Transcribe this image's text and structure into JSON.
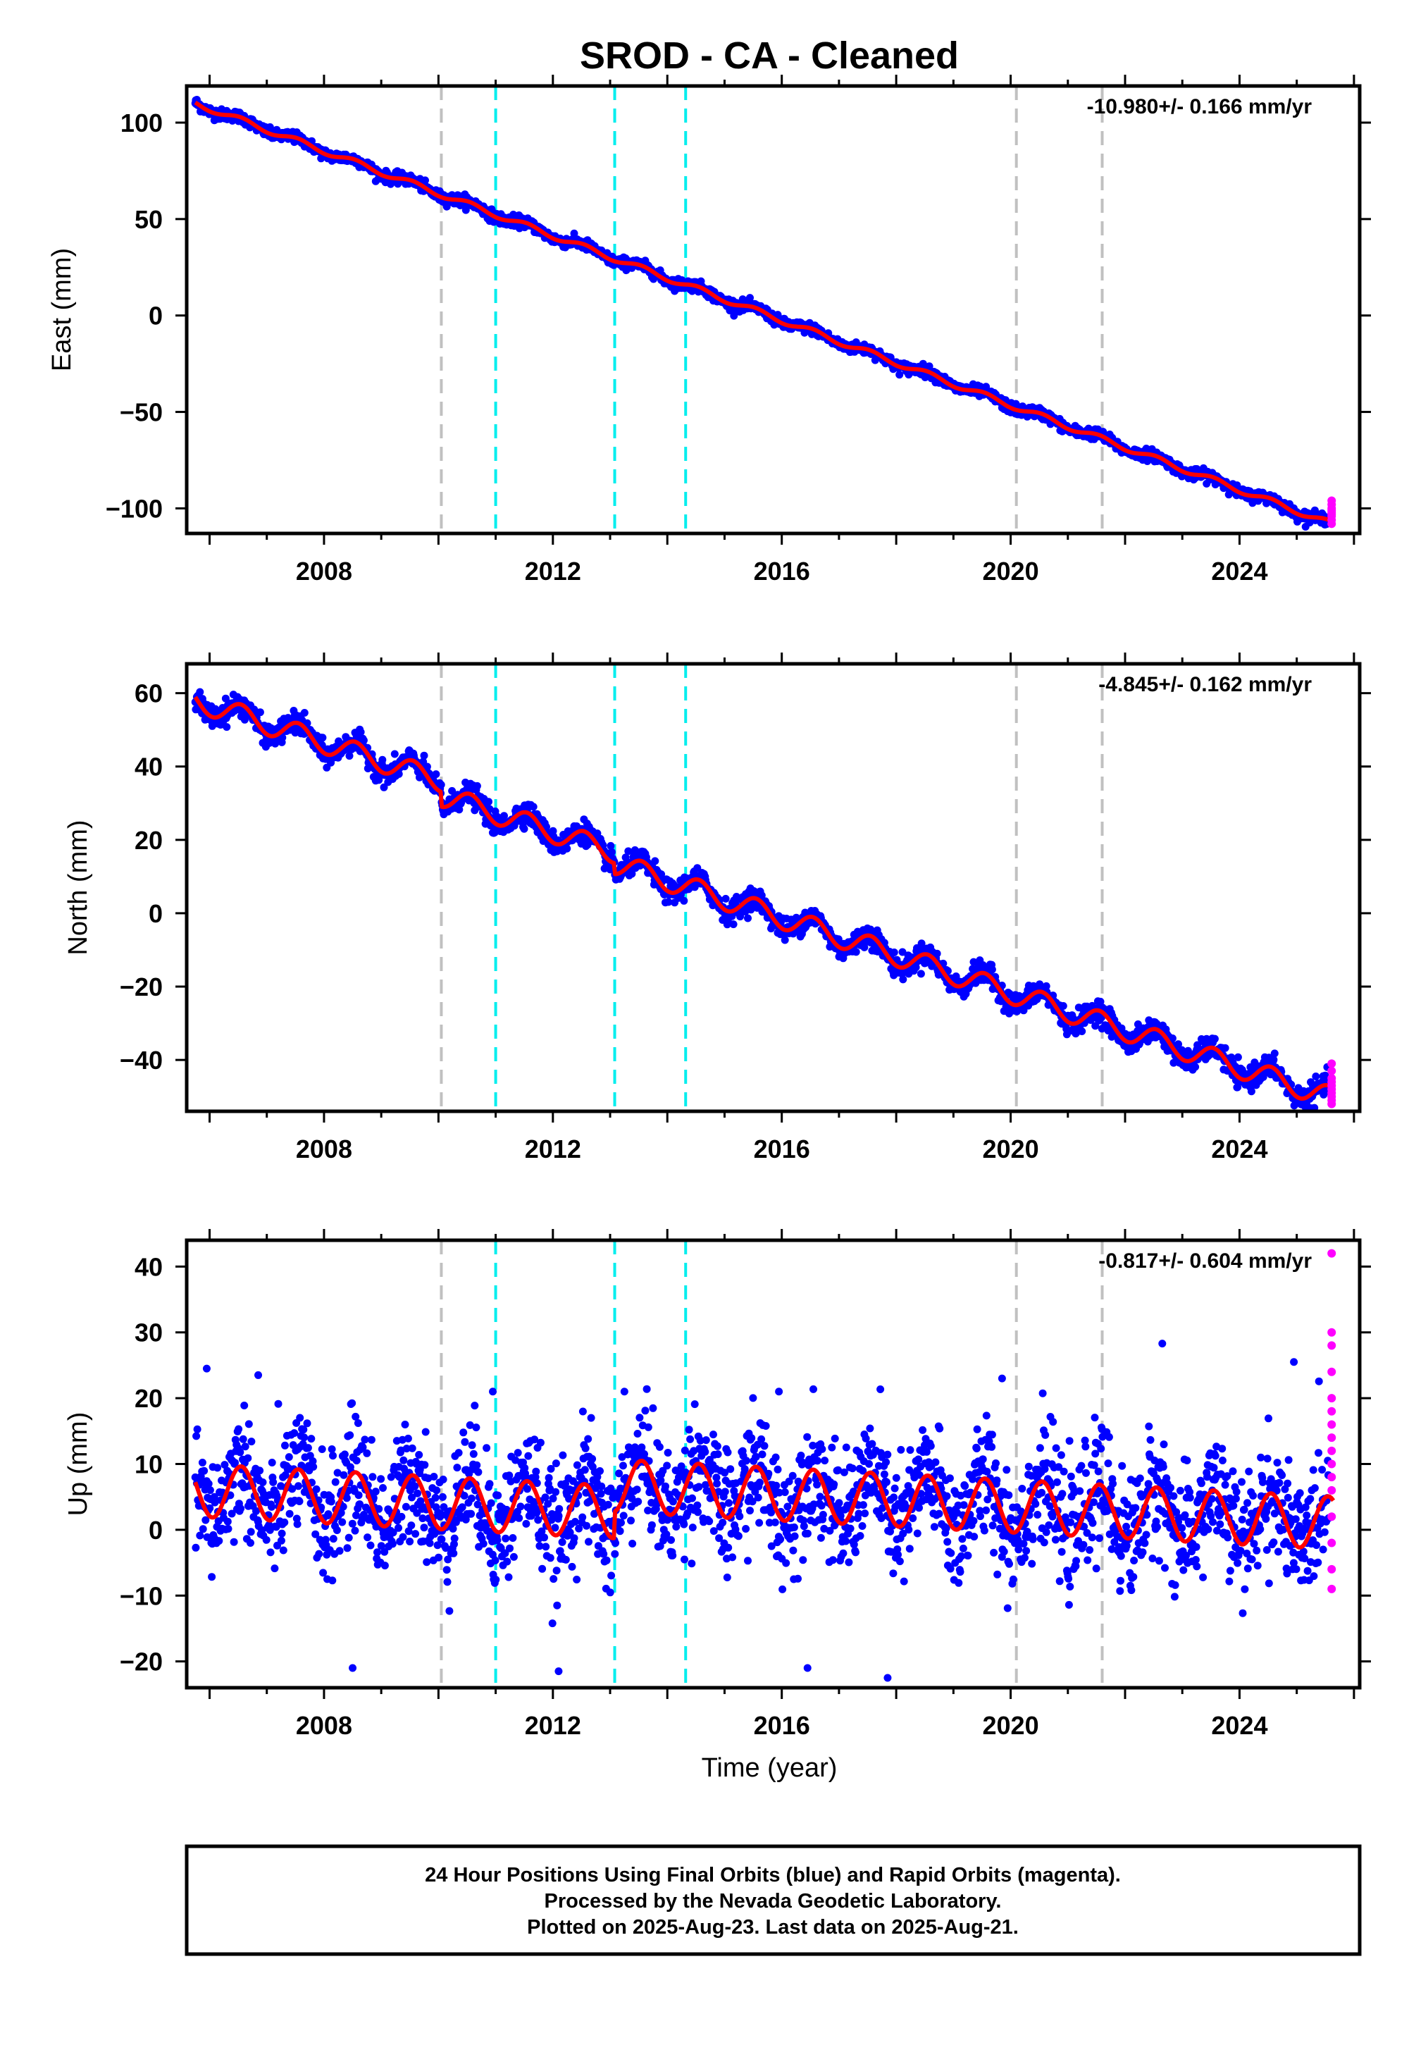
{
  "chart_data": {
    "type": "scatter",
    "title": "SROD  - CA - Cleaned",
    "xlabel": "Time (year)",
    "xlim": [
      2005.6,
      2026.1
    ],
    "x_ticks": [
      2008,
      2012,
      2016,
      2020,
      2024
    ],
    "x_tick_labels": [
      "2008",
      "2012",
      "2016",
      "2020",
      "2024"
    ],
    "data_span": [
      2005.75,
      2025.64
    ],
    "rapid_span": [
      2025.56,
      2025.64
    ],
    "vlines_gray": [
      2010.05,
      2020.1,
      2021.6
    ],
    "vlines_cyan": [
      2011.0,
      2013.08,
      2014.32
    ],
    "colors": {
      "final": "#0000ff",
      "rapid": "#ff00ff",
      "model": "#ff0000",
      "gray_line": "#c0c0c0",
      "cyan_line": "#00eeee"
    },
    "legend": "Final Orbits (blue) and Rapid Orbits (magenta)",
    "panels": [
      {
        "key": "east",
        "ylabel": "East (mm)",
        "ylim": [
          -113,
          119
        ],
        "y_ticks": [
          100,
          50,
          0,
          -50,
          -100
        ],
        "y_tick_labels": [
          "100",
          "50",
          "0",
          "−50",
          "−100"
        ],
        "rate_label": "-10.980+/- 0.166 mm/yr",
        "model": {
          "start_value": 110,
          "trend": -10.98,
          "annual_amp": 1.5,
          "steps": []
        },
        "scatter_sigma": 1.4,
        "outliers": [],
        "rapid_points": [
          -96,
          -98,
          -100,
          -101,
          -102,
          -103,
          -104,
          -106,
          -108
        ]
      },
      {
        "key": "north",
        "ylabel": "North (mm)",
        "ylim": [
          -54,
          68
        ],
        "y_ticks": [
          60,
          40,
          20,
          0,
          -20,
          -40
        ],
        "y_tick_labels": [
          "60",
          "40",
          "20",
          "0",
          "−20",
          "−40"
        ],
        "rate_label": "-4.845+/- 0.162 mm/yr",
        "model": {
          "start_value": 58,
          "trend": -5.1,
          "annual_amp": 3.0,
          "steps": [
            [
              2010.05,
              -4
            ],
            [
              2013.08,
              -3
            ]
          ]
        },
        "scatter_sigma": 1.5,
        "outliers": [],
        "rapid_points": [
          -41,
          -43,
          -45,
          -46,
          -47,
          -48,
          -49,
          -50,
          -51,
          -52
        ]
      },
      {
        "key": "up",
        "ylabel": "Up (mm)",
        "ylim": [
          -24,
          44
        ],
        "y_ticks": [
          40,
          30,
          20,
          10,
          0,
          -10,
          -20
        ],
        "y_tick_labels": [
          "40",
          "30",
          "20",
          "10",
          "0",
          "−10",
          "−20"
        ],
        "rate_label": "-0.817+/- 0.604 mm/yr",
        "model": {
          "start_value": 6,
          "trend": -0.45,
          "annual_amp": 4.0,
          "steps": [
            [
              2013.08,
              4
            ]
          ]
        },
        "scatter_sigma": 4.5,
        "outliers": [
          [
            2005.95,
            24.5
          ],
          [
            2006.85,
            23.5
          ],
          [
            2010.95,
            21
          ],
          [
            2013.25,
            21
          ],
          [
            2015.95,
            21
          ],
          [
            2019.85,
            23
          ],
          [
            2022.65,
            28.3
          ],
          [
            2024.95,
            25.5
          ],
          [
            2016.45,
            -21
          ],
          [
            2017.85,
            -22.5
          ],
          [
            2012.1,
            -21.5
          ],
          [
            2008.5,
            -21
          ]
        ],
        "rapid_points": [
          42,
          30,
          28,
          24,
          20,
          18,
          16,
          14,
          12,
          10,
          8,
          6,
          2,
          -2,
          -6,
          -9
        ]
      }
    ]
  },
  "footer": {
    "line1": "24 Hour Positions Using Final Orbits (blue) and Rapid Orbits (magenta).",
    "line2": "Processed by the Nevada Geodetic Laboratory.",
    "line3": "Plotted on 2025-Aug-23. Last data on 2025-Aug-21."
  }
}
